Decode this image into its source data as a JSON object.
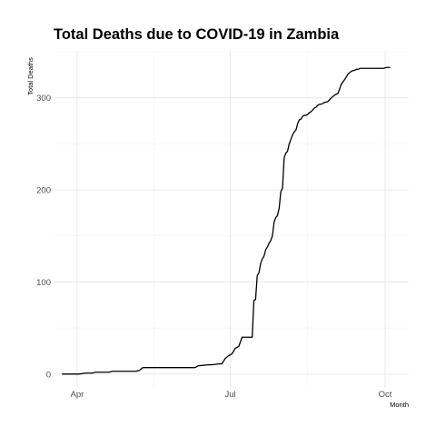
{
  "chart_data": {
    "type": "line",
    "title": "Total Deaths due to COVID-19 in Zambia",
    "xlabel": "Month",
    "ylabel": "Total Deaths",
    "x_ticks": [
      {
        "label": "Apr",
        "date": "2020-04-01"
      },
      {
        "label": "Jul",
        "date": "2020-07-01"
      },
      {
        "label": "Oct",
        "date": "2020-10-01"
      }
    ],
    "y_ticks": [
      0,
      100,
      200,
      300
    ],
    "xlim": [
      "2020-03-18",
      "2020-10-15"
    ],
    "ylim": [
      -15,
      350
    ],
    "grid": true,
    "series": [
      {
        "x": [
          "2020-03-23",
          "2020-04-02",
          "2020-04-06",
          "2020-04-10",
          "2020-04-12",
          "2020-04-20",
          "2020-04-22",
          "2020-05-04",
          "2020-05-06",
          "2020-05-08",
          "2020-05-10",
          "2020-06-10",
          "2020-06-12",
          "2020-06-18",
          "2020-06-20",
          "2020-06-24",
          "2020-06-26",
          "2020-06-28",
          "2020-06-30",
          "2020-07-02",
          "2020-07-04",
          "2020-07-06",
          "2020-07-08",
          "2020-07-14",
          "2020-07-15",
          "2020-07-16",
          "2020-07-17",
          "2020-07-18",
          "2020-07-19",
          "2020-07-20",
          "2020-07-21",
          "2020-07-22",
          "2020-07-23",
          "2020-07-24",
          "2020-07-25",
          "2020-07-26",
          "2020-07-27",
          "2020-07-28",
          "2020-07-29",
          "2020-07-30",
          "2020-07-31",
          "2020-08-01",
          "2020-08-02",
          "2020-08-03",
          "2020-08-04",
          "2020-08-05",
          "2020-08-06",
          "2020-08-07",
          "2020-08-08",
          "2020-08-09",
          "2020-08-10",
          "2020-08-11",
          "2020-08-12",
          "2020-08-13",
          "2020-08-14",
          "2020-08-15",
          "2020-08-16",
          "2020-08-17",
          "2020-08-18",
          "2020-08-19",
          "2020-08-20",
          "2020-08-21",
          "2020-08-22",
          "2020-08-23",
          "2020-08-24",
          "2020-08-26",
          "2020-08-28",
          "2020-08-30",
          "2020-09-01",
          "2020-09-03",
          "2020-09-05",
          "2020-09-07",
          "2020-09-09",
          "2020-09-11",
          "2020-09-13",
          "2020-09-14",
          "2020-09-15",
          "2020-09-16",
          "2020-09-17",
          "2020-09-18",
          "2020-09-19",
          "2020-09-20",
          "2020-09-22",
          "2020-09-24",
          "2020-09-26",
          "2020-09-28",
          "2020-09-30",
          "2020-10-02",
          "2020-10-04"
        ],
        "values": [
          0,
          0,
          1,
          1,
          2,
          2,
          3,
          3,
          3,
          4,
          7,
          7,
          9,
          10,
          10,
          11,
          11,
          17,
          20,
          22,
          28,
          30,
          40,
          40,
          80,
          81,
          107,
          110,
          120,
          125,
          128,
          135,
          138,
          142,
          145,
          150,
          165,
          170,
          172,
          180,
          198,
          202,
          235,
          240,
          242,
          250,
          255,
          260,
          263,
          265,
          272,
          276,
          277,
          280,
          281,
          281,
          282,
          284,
          285,
          287,
          289,
          290,
          292,
          293,
          293,
          295,
          296,
          300,
          303,
          305,
          315,
          320,
          326,
          329,
          330,
          331,
          331,
          332,
          332,
          332,
          332,
          332,
          332,
          332,
          332,
          332,
          332,
          333,
          333
        ]
      }
    ]
  }
}
